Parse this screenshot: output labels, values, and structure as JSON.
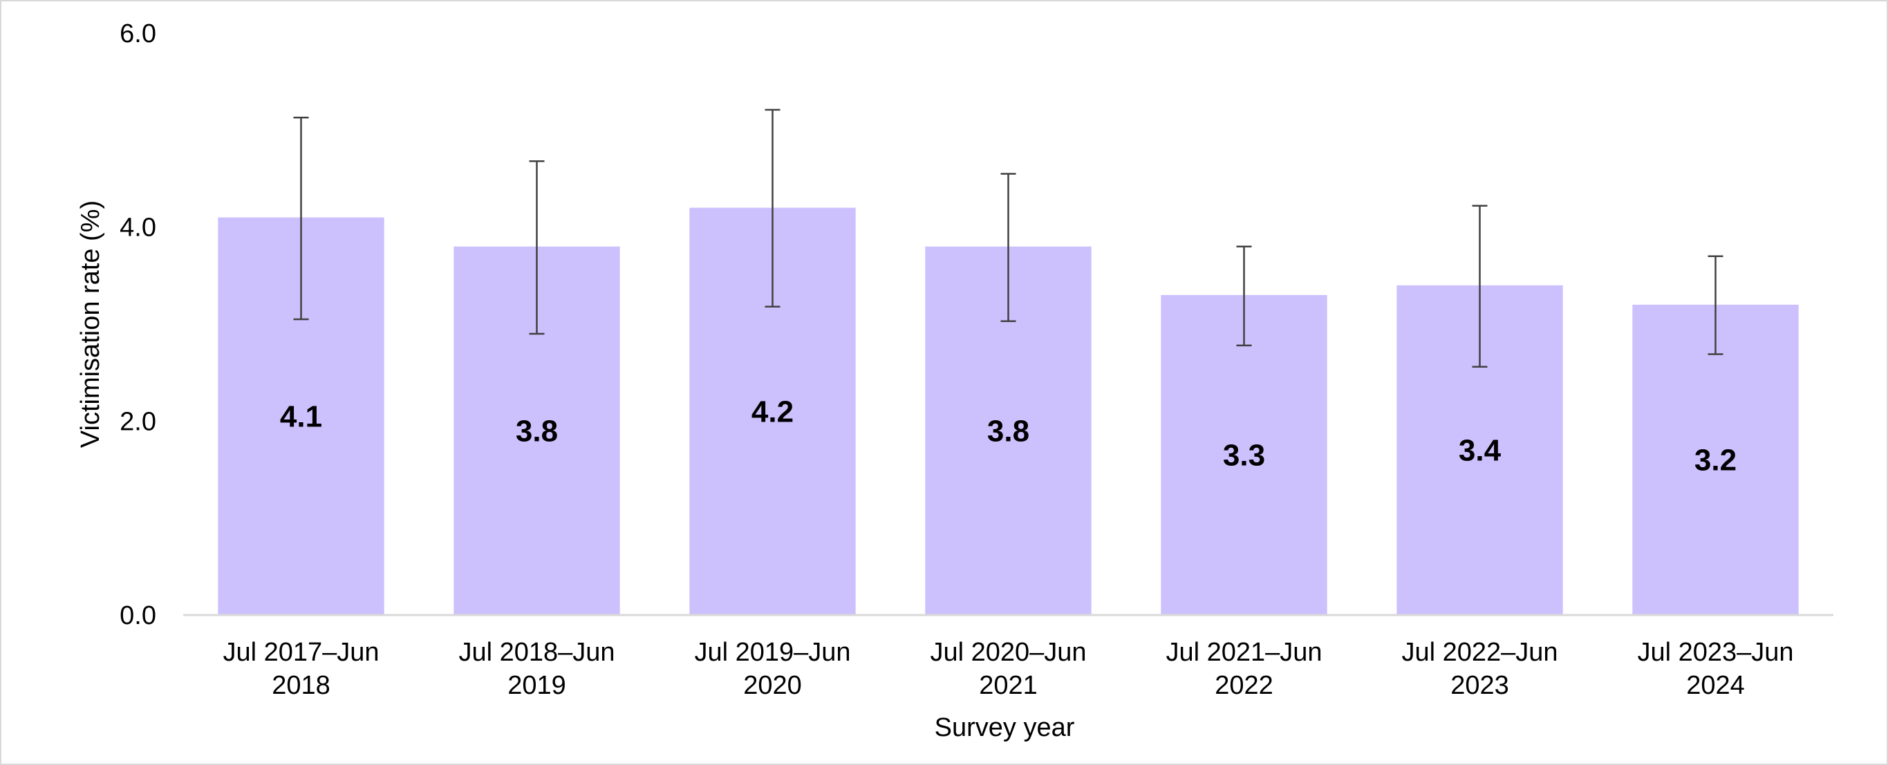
{
  "chart_data": {
    "type": "bar",
    "title": "",
    "xlabel": "Survey year",
    "ylabel": "Victimisation rate (%)",
    "ylim": [
      0,
      6
    ],
    "yticks": [
      "0.0",
      "2.0",
      "4.0",
      "6.0"
    ],
    "grid": false,
    "categories": [
      [
        "Jul 2017–Jun",
        "2018"
      ],
      [
        "Jul 2018–Jun",
        "2019"
      ],
      [
        "Jul 2019–Jun",
        "2020"
      ],
      [
        "Jul 2020–Jun",
        "2021"
      ],
      [
        "Jul 2021–Jun",
        "2022"
      ],
      [
        "Jul 2022–Jun",
        "2023"
      ],
      [
        "Jul 2023–Jun",
        "2024"
      ]
    ],
    "values": [
      4.1,
      3.8,
      4.2,
      3.8,
      3.3,
      3.4,
      3.2
    ],
    "data_labels": [
      "4.1",
      "3.8",
      "4.2",
      "3.8",
      "3.3",
      "3.4",
      "3.2"
    ],
    "error_bars": [
      {
        "low": 3.05,
        "high": 5.13
      },
      {
        "low": 2.9,
        "high": 4.68
      },
      {
        "low": 3.18,
        "high": 5.21
      },
      {
        "low": 3.03,
        "high": 4.55
      },
      {
        "low": 2.78,
        "high": 3.8
      },
      {
        "low": 2.56,
        "high": 4.22
      },
      {
        "low": 2.69,
        "high": 3.7
      }
    ],
    "colors": {
      "bar": "#cdc1fd",
      "error_bar": "#404040",
      "axis": "#d9d9d9"
    }
  }
}
